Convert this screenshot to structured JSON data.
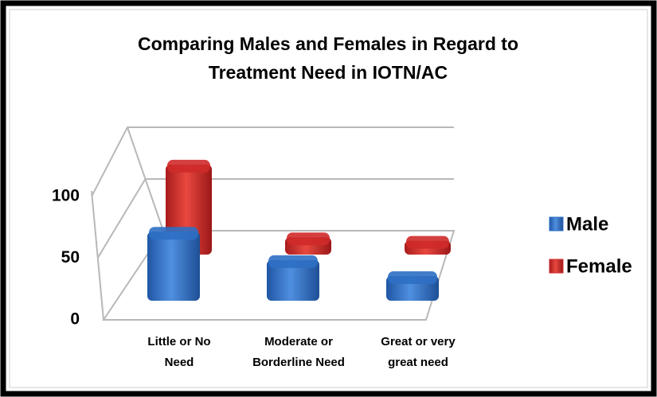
{
  "chart_data": {
    "type": "bar3d",
    "title_lines": [
      "Comparing Males and Females in Regard to",
      "Treatment Need in IOTN/AC"
    ],
    "categories": [
      [
        "Little or No",
        "Need"
      ],
      [
        "Moderate or",
        "Borderline Need"
      ],
      [
        "Great or very",
        "great need"
      ]
    ],
    "series": [
      {
        "name": "Male",
        "color": "#2e6fc4",
        "values": [
          56,
          33,
          20
        ]
      },
      {
        "name": "Female",
        "color": "#cf2a2a",
        "values": [
          78,
          15,
          12
        ]
      }
    ],
    "ylim": [
      0,
      100
    ],
    "yticks": [
      0,
      50,
      100
    ],
    "grid": true,
    "legend": "right"
  }
}
